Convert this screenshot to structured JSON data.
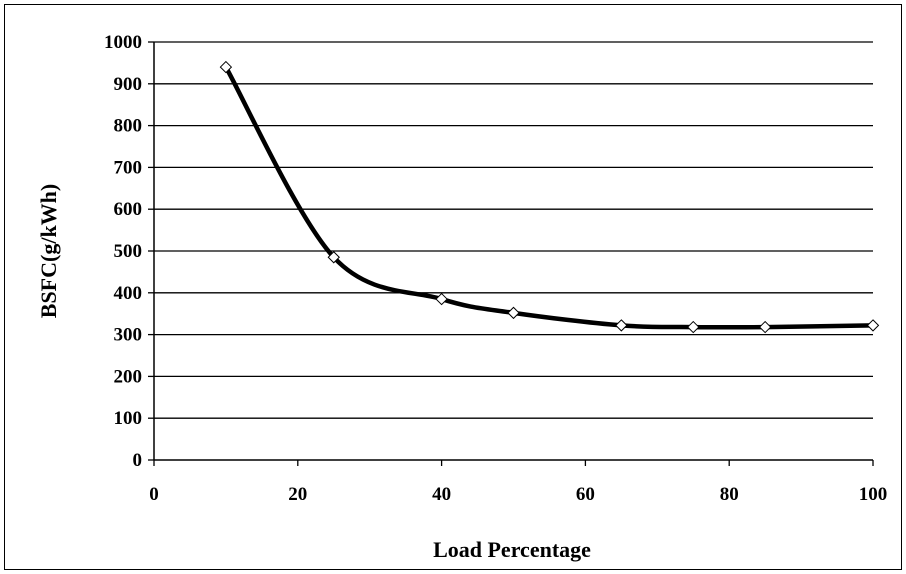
{
  "chart_data": {
    "type": "line",
    "title": "",
    "xlabel": "Load Percentage",
    "ylabel": "BSFC(g/kWh)",
    "xlim": [
      0,
      100
    ],
    "ylim": [
      0,
      1000
    ],
    "x_ticks": [
      0,
      20,
      40,
      60,
      80,
      100
    ],
    "y_ticks": [
      0,
      100,
      200,
      300,
      400,
      500,
      600,
      700,
      800,
      900,
      1000
    ],
    "grid": "horizontal",
    "legend": "none",
    "series": [
      {
        "x": [
          10,
          25,
          40,
          50,
          65,
          75,
          85,
          100
        ],
        "y": [
          940,
          485,
          385,
          352,
          322,
          318,
          318,
          322
        ],
        "color": "#000000",
        "marker": "diamond",
        "smooth": true
      }
    ]
  }
}
